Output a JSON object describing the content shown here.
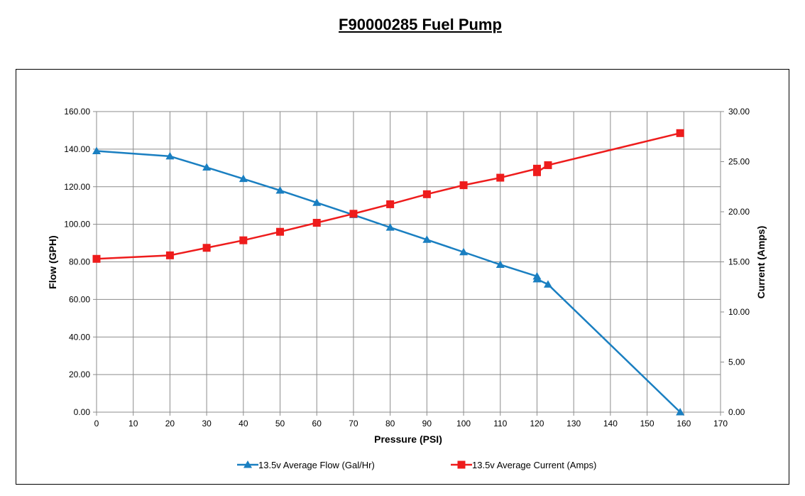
{
  "chart_data": {
    "type": "line",
    "title": "F90000285 Fuel Pump",
    "xlabel": "Pressure (PSI)",
    "ylabel": "Flow (GPH)",
    "y2label": "Current (Amps)",
    "xlim": [
      0,
      170
    ],
    "ylim": [
      0,
      160
    ],
    "y2lim": [
      0,
      30
    ],
    "x_ticks": [
      "0",
      "10",
      "20",
      "30",
      "40",
      "50",
      "60",
      "70",
      "80",
      "90",
      "100",
      "110",
      "120",
      "130",
      "140",
      "150",
      "160",
      "170"
    ],
    "y_ticks": [
      "0.00",
      "20.00",
      "40.00",
      "60.00",
      "80.00",
      "100.00",
      "120.00",
      "140.00",
      "160.00"
    ],
    "y2_ticks": [
      "0.00",
      "5.00",
      "10.00",
      "15.00",
      "20.00",
      "25.00",
      "30.00"
    ],
    "grid": true,
    "legend_position": "bottom",
    "series": [
      {
        "name": "13.5v Average Flow (Gal/Hr)",
        "axis": "left",
        "color": "#1a7fc1",
        "marker": "triangle",
        "x": [
          0,
          20,
          30,
          40,
          50,
          60,
          70,
          80,
          90,
          100,
          110,
          120,
          120,
          123,
          159
        ],
        "y": [
          139,
          136.2,
          130.3,
          124.2,
          118,
          111.5,
          105,
          98.3,
          91.8,
          85.2,
          78.5,
          72.3,
          70.8,
          68,
          0
        ]
      },
      {
        "name": "13.5v Average Current (Amps)",
        "axis": "right",
        "color": "#ee1c1c",
        "marker": "square",
        "x": [
          0,
          20,
          30,
          40,
          50,
          60,
          70,
          80,
          90,
          100,
          110,
          120,
          120,
          123,
          159
        ],
        "y": [
          15.3,
          15.65,
          16.4,
          17.15,
          18,
          18.9,
          19.8,
          20.75,
          21.75,
          22.65,
          23.4,
          24.3,
          23.95,
          24.65,
          27.85
        ]
      }
    ]
  }
}
